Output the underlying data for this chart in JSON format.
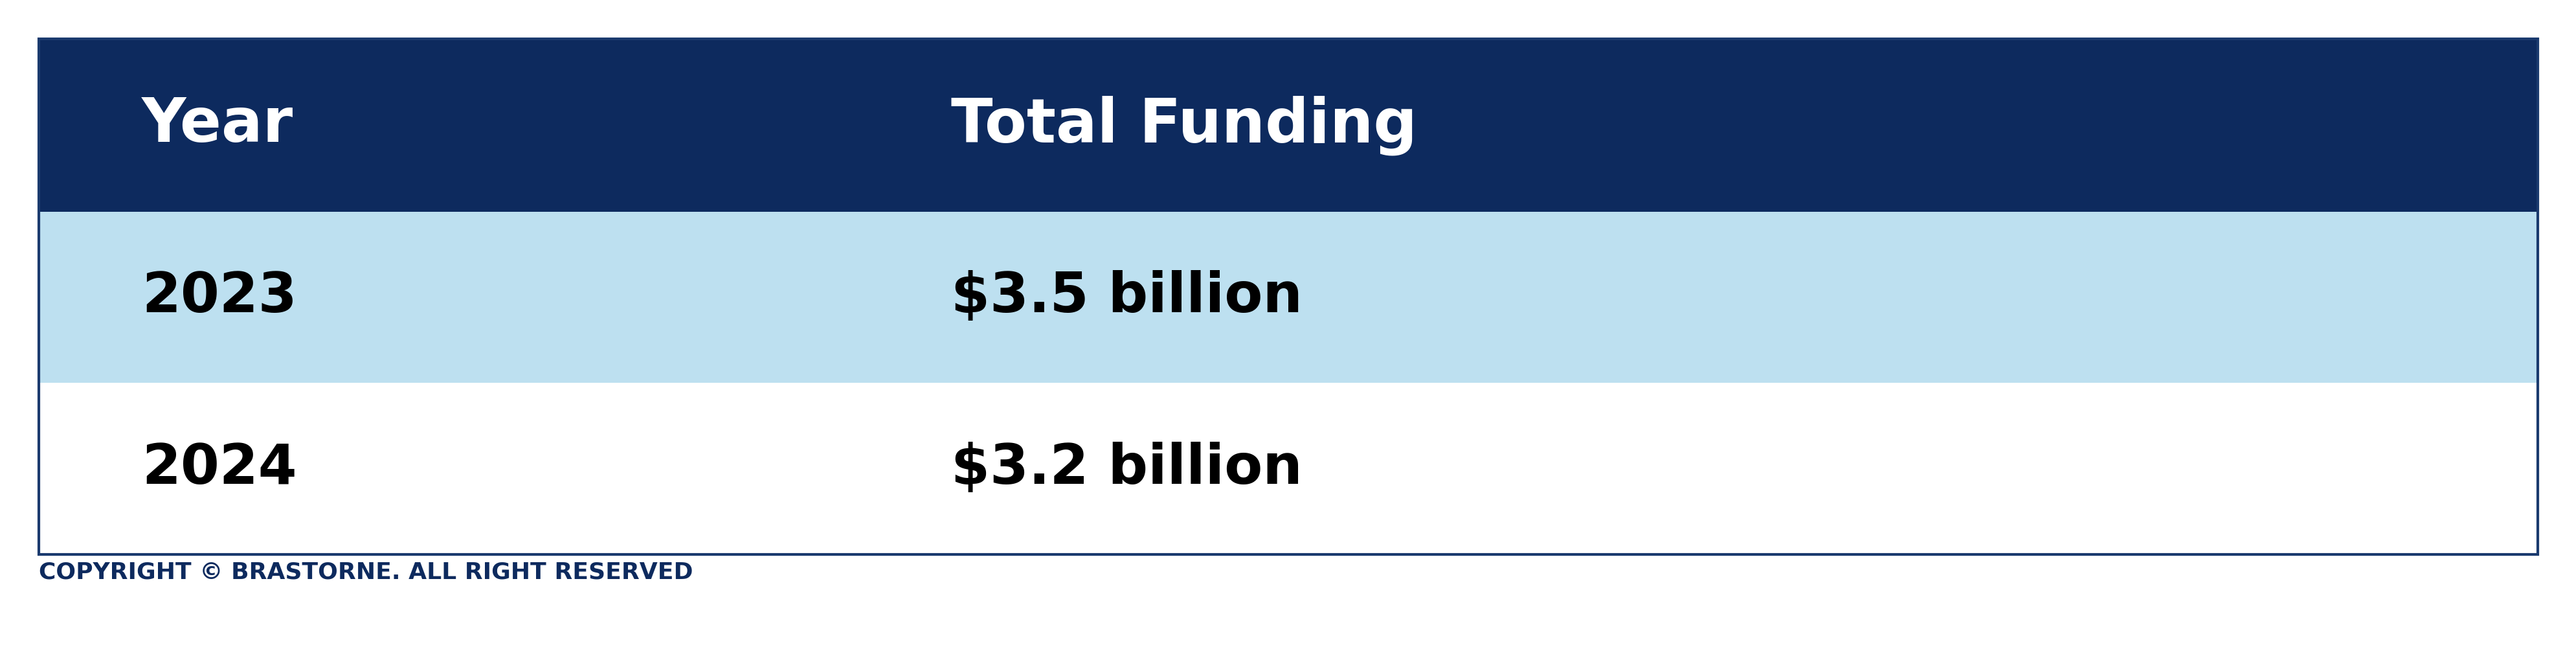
{
  "header_cols": [
    "Year",
    "Total Funding"
  ],
  "rows": [
    [
      "2023",
      "$3.5 billion"
    ],
    [
      "2024",
      "$3.2 billion"
    ]
  ],
  "header_bg_color": "#0d2a5e",
  "header_text_color": "#ffffff",
  "row_colors": [
    "#bde0f0",
    "#ffffff"
  ],
  "row_text_color": "#000000",
  "footer_text": "COPYRIGHT © BRASTORNE. ALL RIGHT RESERVED",
  "footer_color": "#0d2a5e",
  "border_color": "#1a3a6e",
  "header_fontsize": 68,
  "row_fontsize": 62,
  "footer_fontsize": 26,
  "fig_width": 39.8,
  "fig_height": 10.36
}
